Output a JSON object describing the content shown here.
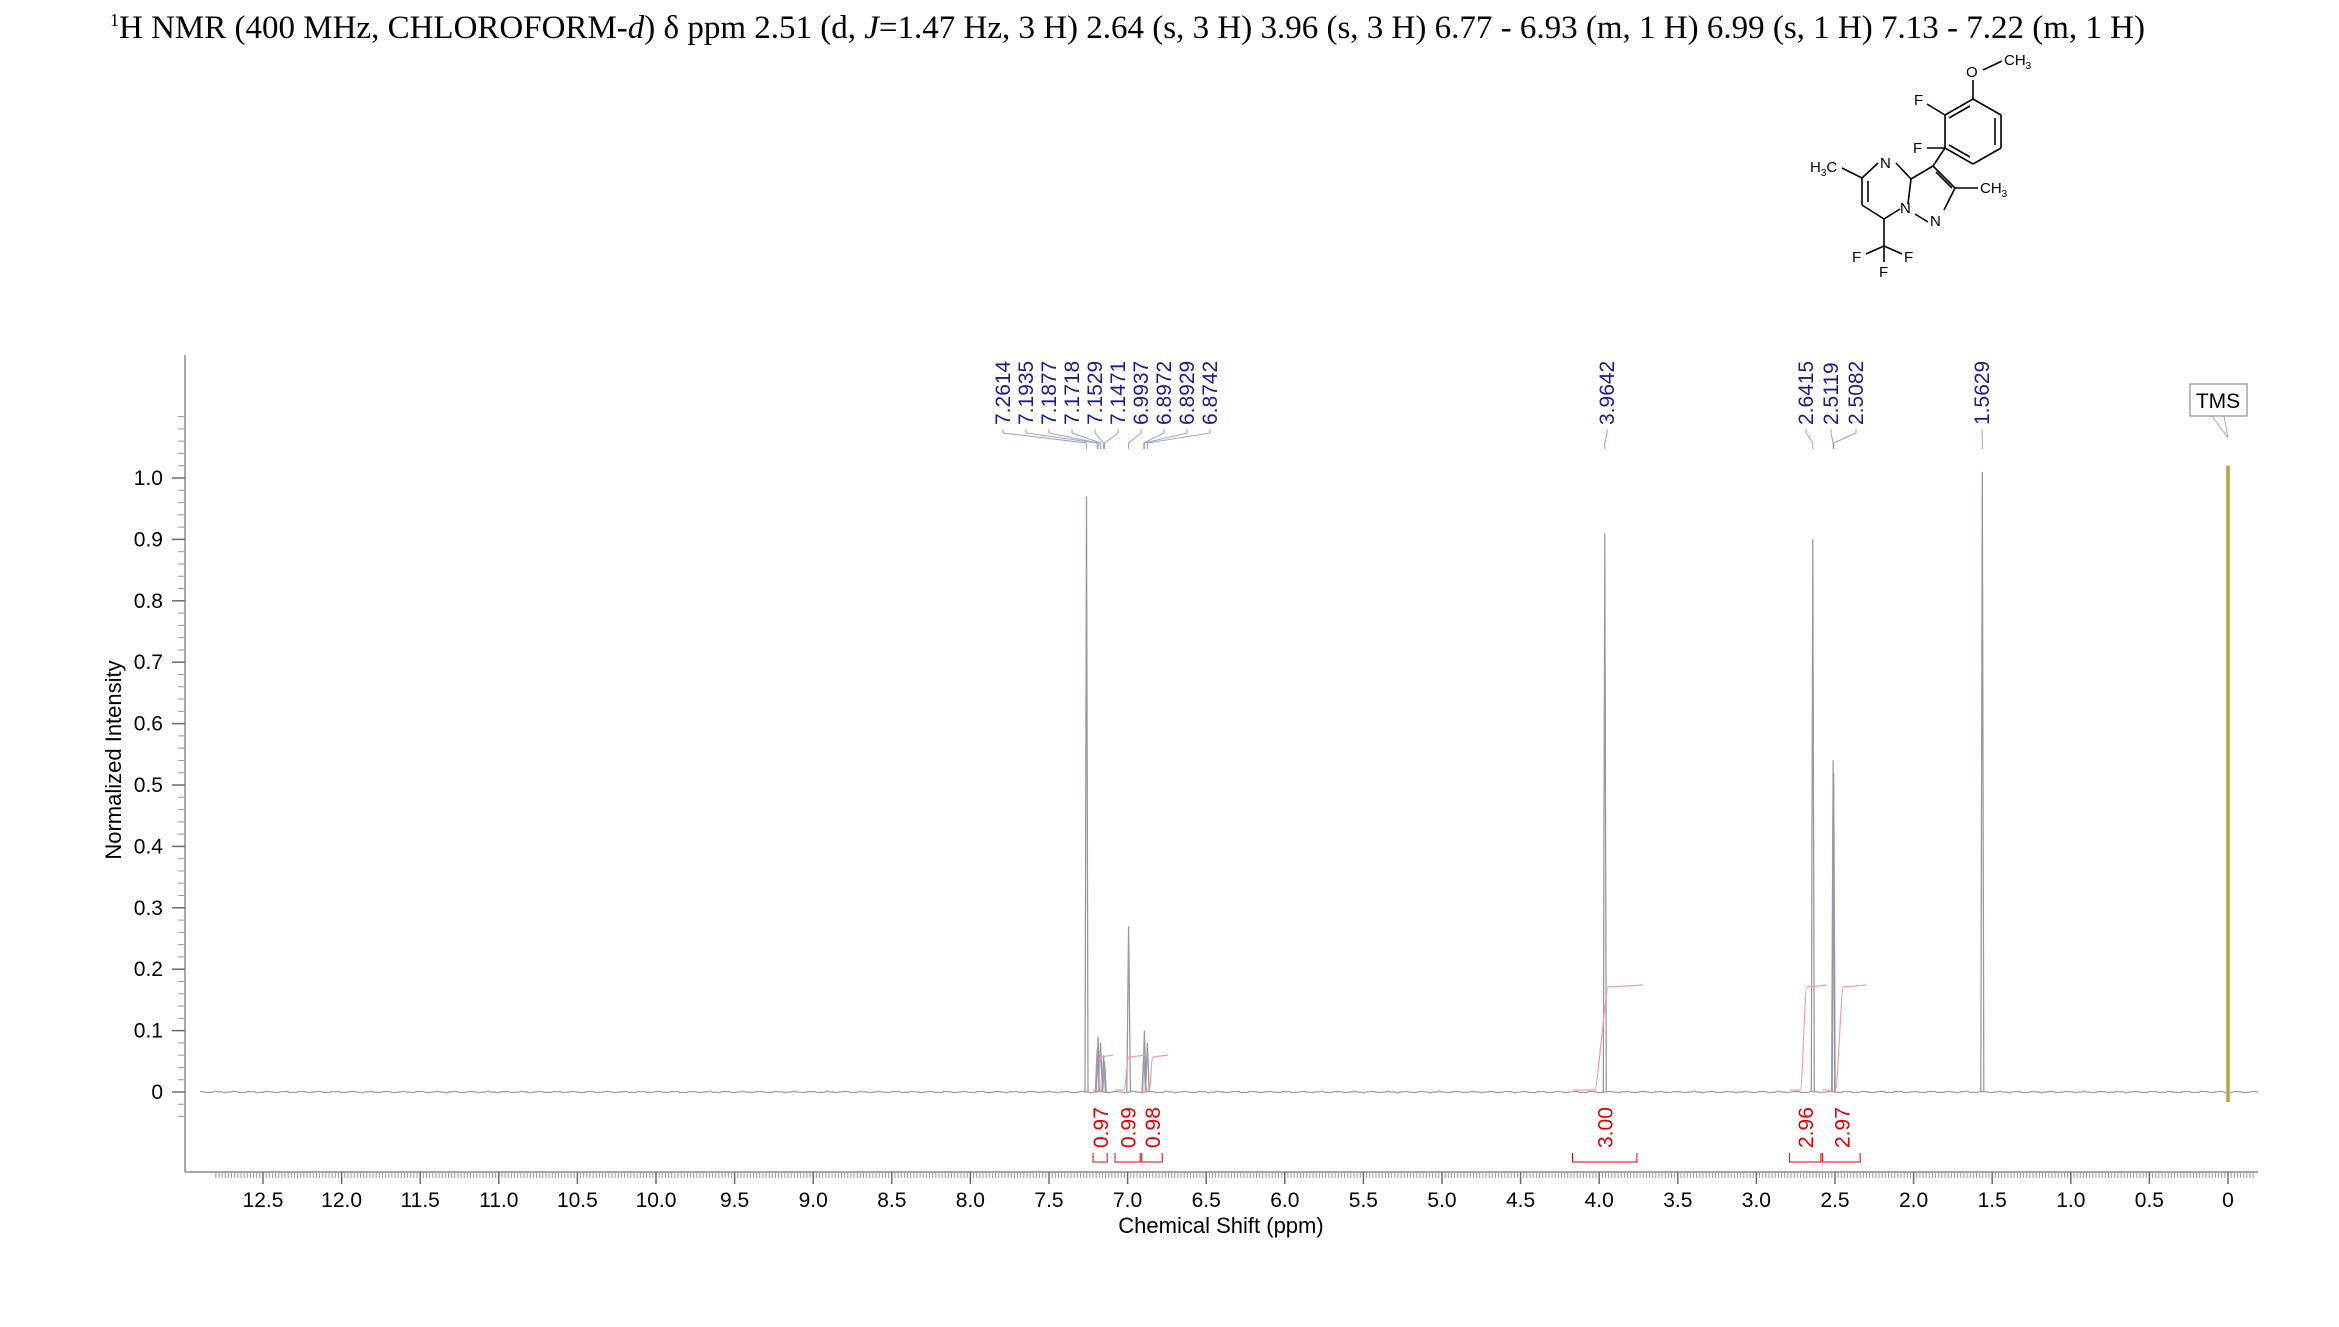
{
  "header": {
    "nucleus_mass": "1",
    "text_a": "H NMR (400 MHz, CHLOROFORM-",
    "text_d": "d",
    "text_b": ") δ ppm 2.51 (d, ",
    "text_j": "J",
    "text_c": "=1.47 Hz, 3 H) 2.64 (s, 3 H) 3.96 (s, 3 H) 6.77 - 6.93 (m, 1 H) 6.99 (s, 1 H) 7.13 - 7.22 (m, 1 H)"
  },
  "structure": {
    "atoms": {
      "o": "O",
      "ch3_top": "CH",
      "f1": "F",
      "f2": "F",
      "h3c": "H",
      "c_left": "C",
      "n_top": "N",
      "ch3_right": "CH",
      "n_mid": "N",
      "n_right": "N",
      "f_cf3_left": "F",
      "f_cf3_right": "F",
      "f_cf3_bottom": "F",
      "sub3": "3"
    }
  },
  "colors": {
    "spectrum": "#9a9aa6",
    "peak_label": "#1c1c8c",
    "integral": "#e00000",
    "integral_curve": "#f0a0a0",
    "tms_bar": "#c8c060"
  },
  "chart_data": {
    "type": "line",
    "title": "",
    "xlabel": "Chemical Shift (ppm)",
    "ylabel": "Normalized Intensity",
    "xlim": [
      12.9,
      -0.2
    ],
    "ylim": [
      -0.13,
      1.2
    ],
    "x_reversed": true,
    "x_ticks": [
      "12.5",
      "12.0",
      "11.5",
      "11.0",
      "10.5",
      "10.0",
      "9.5",
      "9.0",
      "8.5",
      "8.0",
      "7.5",
      "7.0",
      "6.5",
      "6.0",
      "5.5",
      "5.0",
      "4.5",
      "4.0",
      "3.5",
      "3.0",
      "2.5",
      "2.0",
      "1.5",
      "1.0",
      "0.5",
      "0"
    ],
    "y_ticks": [
      "0",
      "0.1",
      "0.2",
      "0.3",
      "0.4",
      "0.5",
      "0.6",
      "0.7",
      "0.8",
      "0.9",
      "1.0"
    ],
    "peaks": [
      {
        "x": 7.2614,
        "y": 0.97
      },
      {
        "x": 7.1935,
        "y": 0.07
      },
      {
        "x": 7.1877,
        "y": 0.09
      },
      {
        "x": 7.1718,
        "y": 0.08
      },
      {
        "x": 7.1529,
        "y": 0.06
      },
      {
        "x": 7.1471,
        "y": 0.05
      },
      {
        "x": 6.9937,
        "y": 0.27
      },
      {
        "x": 6.8972,
        "y": 0.06
      },
      {
        "x": 6.8929,
        "y": 0.1
      },
      {
        "x": 6.8742,
        "y": 0.08
      },
      {
        "x": 3.9642,
        "y": 0.91
      },
      {
        "x": 2.6415,
        "y": 0.9
      },
      {
        "x": 2.5119,
        "y": 0.54
      },
      {
        "x": 2.5082,
        "y": 0.52
      },
      {
        "x": 1.5629,
        "y": 1.01
      },
      {
        "x": 0.0,
        "y": 1.02
      }
    ],
    "peak_labels": [
      {
        "label": "7.2614",
        "x": 7.2614
      },
      {
        "label": "7.1935",
        "x": 7.1935
      },
      {
        "label": "7.1877",
        "x": 7.1877
      },
      {
        "label": "7.1718",
        "x": 7.1718
      },
      {
        "label": "7.1529",
        "x": 7.1529
      },
      {
        "label": "7.1471",
        "x": 7.1471
      },
      {
        "label": "6.9937",
        "x": 6.9937
      },
      {
        "label": "6.8972",
        "x": 6.8972
      },
      {
        "label": "6.8929",
        "x": 6.8929
      },
      {
        "label": "6.8742",
        "x": 6.8742
      },
      {
        "label": "3.9642",
        "x": 3.9642
      },
      {
        "label": "2.6415",
        "x": 2.6415
      },
      {
        "label": "2.5119",
        "x": 2.5119
      },
      {
        "label": "2.5082",
        "x": 2.5082
      },
      {
        "label": "1.5629",
        "x": 1.5629
      }
    ],
    "integrals": [
      {
        "label": "0.97",
        "from": 7.22,
        "to": 7.13
      },
      {
        "label": "0.99",
        "from": 7.08,
        "to": 6.92
      },
      {
        "label": "0.98",
        "from": 6.91,
        "to": 6.78
      },
      {
        "label": "3.00",
        "from": 4.17,
        "to": 3.76
      },
      {
        "label": "2.96",
        "from": 2.79,
        "to": 2.59
      },
      {
        "label": "2.97",
        "from": 2.58,
        "to": 2.34
      }
    ],
    "annotations": [
      {
        "label": "TMS",
        "x": 0.0
      }
    ]
  }
}
